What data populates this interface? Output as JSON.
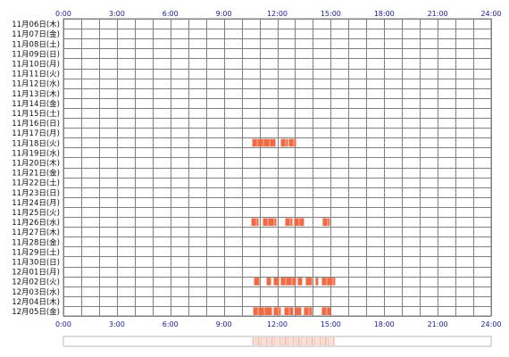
{
  "chart_data": {
    "type": "heatmap",
    "x_unit": "hour of day",
    "xlim": [
      0,
      24
    ],
    "x_ticks": [
      "0:00",
      "3:00",
      "6:00",
      "9:00",
      "12:00",
      "15:00",
      "18:00",
      "21:00",
      "24:00"
    ],
    "grid": true,
    "rows": [
      "11月06日(木)",
      "11月07日(金)",
      "11月08日(土)",
      "11月09日(日)",
      "11月10日(月)",
      "11月11日(火)",
      "11月12日(水)",
      "11月13日(木)",
      "11月14日(金)",
      "11月15日(土)",
      "11月16日(日)",
      "11月17日(月)",
      "11月18日(火)",
      "11月19日(水)",
      "11月20日(木)",
      "11月21日(金)",
      "11月22日(土)",
      "11月23日(日)",
      "11月24日(月)",
      "11月25日(火)",
      "11月26日(水)",
      "11月27日(木)",
      "11月28日(金)",
      "11月29日(土)",
      "11月30日(日)",
      "12月01日(月)",
      "12月02日(火)",
      "12月03日(水)",
      "12月04日(木)",
      "12月05日(金)"
    ],
    "activity": [
      {
        "row": "11月18日(火)",
        "intervals": [
          [
            10.6,
            11.9
          ],
          [
            12.2,
            12.6
          ],
          [
            12.65,
            13.05
          ]
        ]
      },
      {
        "row": "11月26日(水)",
        "intervals": [
          [
            10.55,
            10.95
          ],
          [
            11.2,
            11.95
          ],
          [
            12.45,
            12.85
          ],
          [
            12.95,
            13.5
          ],
          [
            14.55,
            14.95
          ]
        ]
      },
      {
        "row": "12月02日(火)",
        "intervals": [
          [
            10.7,
            11.0
          ],
          [
            11.4,
            11.65
          ],
          [
            11.8,
            12.1
          ],
          [
            12.2,
            13.05
          ],
          [
            13.15,
            13.4
          ],
          [
            13.6,
            13.95
          ],
          [
            14.15,
            14.3
          ],
          [
            14.5,
            15.25
          ]
        ]
      },
      {
        "row": "12月05日(金)",
        "intervals": [
          [
            10.65,
            11.7
          ],
          [
            11.8,
            12.2
          ],
          [
            12.4,
            12.9
          ],
          [
            13.0,
            13.35
          ],
          [
            13.5,
            13.95
          ],
          [
            14.5,
            15.0
          ]
        ]
      }
    ],
    "colors": {
      "activity": "#f06a45",
      "grid": "#808080",
      "tick_label": "#1a1a99",
      "summary_strip": "#f0a088"
    }
  }
}
